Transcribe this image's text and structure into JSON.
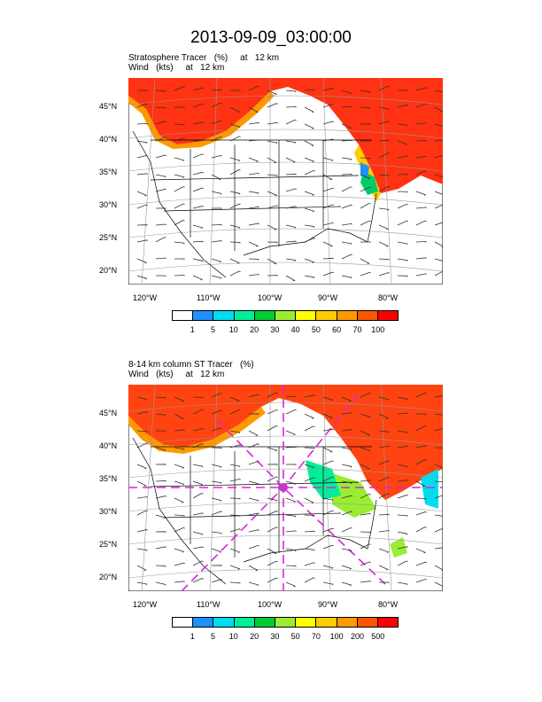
{
  "title": "2013-09-09_03:00:00",
  "panel1": {
    "line1": "Stratosphere Tracer   (%)     at   12 km",
    "line2": "Wind   (kts)     at   12 km",
    "colorbar_labels": [
      "1",
      "5",
      "10",
      "20",
      "30",
      "40",
      "50",
      "60",
      "70",
      "100"
    ]
  },
  "panel2": {
    "line1": "8-14 km column ST Tracer   (%)",
    "line2": "Wind   (kts)     at   12 km",
    "colorbar_labels": [
      "1",
      "5",
      "10",
      "20",
      "30",
      "50",
      "70",
      "100",
      "200",
      "500"
    ]
  },
  "lat_labels": [
    "45°N",
    "40°N",
    "35°N",
    "30°N",
    "25°N",
    "20°N"
  ],
  "lon_labels": [
    "120°W",
    "110°W",
    "100°W",
    "90°W",
    "80°W"
  ],
  "colorbar_colors": [
    "#ffffff",
    "#1e90ff",
    "#00ddee",
    "#00ee99",
    "#00cc33",
    "#99ee33",
    "#ffff00",
    "#ffcc00",
    "#ff9900",
    "#ff5500",
    "#ff0000"
  ]
}
